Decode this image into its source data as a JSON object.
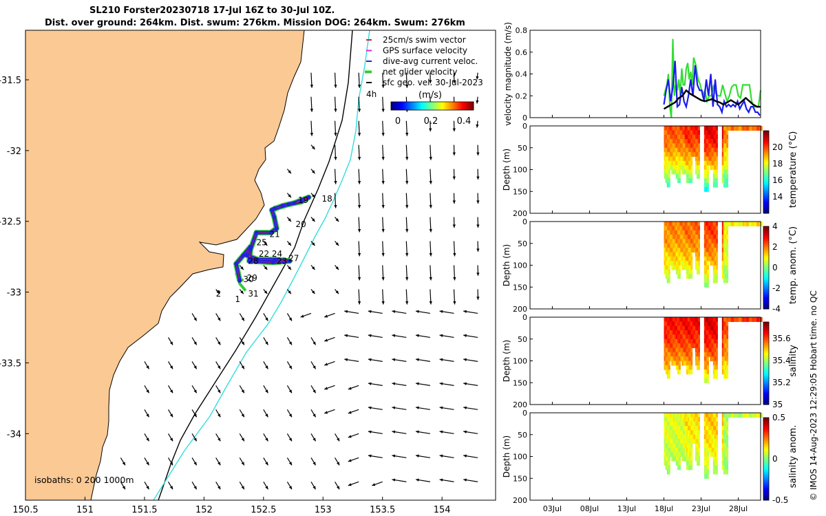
{
  "title": {
    "line1": "SL210 Forster20230718 17-Jul 16Z to 30-Jul 10Z.",
    "line2": "Dist. over ground: 264km. Dist. swum: 276km. Mission DOG: 264km. Swum: 276km"
  },
  "credit": "© IMOS 14-Aug-2023 12:29:05 Hobart time. no QC",
  "colors": {
    "land": "#fac994",
    "isobath200": "#000000",
    "isobath1000": "#33dddd",
    "swim": "#dd2222",
    "gps": "#dd22dd",
    "dive": "#2222dd",
    "net": "#33cc33",
    "geo": "#000000"
  },
  "chart_data": [
    {
      "type": "map",
      "name": "glider track map",
      "xlim": [
        150.5,
        154.45
      ],
      "ylim": [
        -34.47,
        -31.15
      ],
      "xticks": [
        150.5,
        151,
        151.5,
        152,
        152.5,
        153,
        153.5,
        154
      ],
      "xtick_labels": [
        "150.5",
        "151",
        "151.5",
        "152",
        "152.5",
        "153",
        "153.5",
        "154"
      ],
      "yticks": [
        -31.5,
        -32,
        -32.5,
        -33,
        -33.5,
        -34
      ],
      "ytick_labels": [
        "-31.5",
        "-32",
        "-32.5",
        "-33",
        "-33.5",
        "-34"
      ],
      "legend": [
        "25cm/s swim vector",
        "GPS surface velocity",
        "dive-avg current veloc.",
        "net glider velocity",
        "sfc geo. vel. 30-Jul-2023"
      ],
      "colorbar": {
        "label": "(m/s)",
        "ticks": [
          "0",
          "0.2",
          "0.4"
        ],
        "range": [
          0,
          0.5
        ]
      },
      "isobath_label": "isobaths: 0   200  1000m",
      "marker_4h": "4h",
      "day_labels": [
        {
          "text": "18",
          "lon": 152.99,
          "lat": -32.36
        },
        {
          "text": "19",
          "lon": 152.79,
          "lat": -32.37
        },
        {
          "text": "20",
          "lon": 152.77,
          "lat": -32.54
        },
        {
          "text": "21",
          "lon": 152.55,
          "lat": -32.61
        },
        {
          "text": "25",
          "lon": 152.44,
          "lat": -32.67
        },
        {
          "text": "22",
          "lon": 152.46,
          "lat": -32.75
        },
        {
          "text": "24",
          "lon": 152.57,
          "lat": -32.75
        },
        {
          "text": "28",
          "lon": 152.37,
          "lat": -32.8
        },
        {
          "text": "23",
          "lon": 152.61,
          "lat": -32.8
        },
        {
          "text": "27",
          "lon": 152.71,
          "lat": -32.78
        },
        {
          "text": "29",
          "lon": 152.36,
          "lat": -32.92
        },
        {
          "text": "30",
          "lon": 152.33,
          "lat": -32.93
        },
        {
          "text": "2",
          "lon": 152.1,
          "lat": -33.03
        },
        {
          "text": "31",
          "lon": 152.37,
          "lat": -33.03
        },
        {
          "text": "1",
          "lon": 152.26,
          "lat": -33.07
        }
      ],
      "track": [
        [
          152.3,
          -32.92
        ],
        [
          152.27,
          -32.8
        ],
        [
          152.33,
          -32.74
        ],
        [
          152.39,
          -32.68
        ],
        [
          152.36,
          -32.74
        ],
        [
          152.45,
          -32.77
        ],
        [
          152.6,
          -32.77
        ],
        [
          152.72,
          -32.78
        ],
        [
          152.58,
          -32.79
        ],
        [
          152.38,
          -32.78
        ],
        [
          152.39,
          -32.7
        ],
        [
          152.44,
          -32.58
        ],
        [
          152.56,
          -32.58
        ],
        [
          152.61,
          -32.55
        ],
        [
          152.59,
          -32.47
        ],
        [
          152.57,
          -32.42
        ],
        [
          152.66,
          -32.39
        ],
        [
          152.76,
          -32.37
        ],
        [
          152.88,
          -32.33
        ],
        [
          152.82,
          -32.36
        ],
        [
          152.71,
          -32.38
        ],
        [
          152.59,
          -32.41
        ]
      ],
      "track_tail": [
        [
          152.33,
          -32.92
        ],
        [
          152.28,
          -32.89
        ],
        [
          152.3,
          -32.94
        ],
        [
          152.35,
          -32.99
        ]
      ]
    },
    {
      "type": "line",
      "name": "velocity magnitude",
      "ylabel": "velocity magnitude (m/s)",
      "ylim": [
        0,
        0.8
      ],
      "yticks": [
        0,
        0.2,
        0.4,
        0.6,
        0.8
      ],
      "yticklabels": [
        "0",
        "0.2",
        "0.4",
        "0.6",
        "0.8"
      ],
      "xlim": [
        0,
        31
      ],
      "series": [
        {
          "name": "net glider velocity",
          "color": "#33dd33",
          "x": [
            18.0,
            18.2,
            18.4,
            18.6,
            18.8,
            19.0,
            19.2,
            19.4,
            19.6,
            19.8,
            20.0,
            20.2,
            20.4,
            20.6,
            20.8,
            21.0,
            21.2,
            21.4,
            21.6,
            21.8,
            22.0,
            22.3,
            22.6,
            22.9,
            23.2,
            23.5,
            23.8,
            24.1,
            24.4,
            24.7,
            25.0,
            25.3,
            25.6,
            25.9,
            26.2,
            26.5,
            26.8,
            27.1,
            27.4,
            27.7,
            28.0,
            28.3,
            28.6,
            28.9,
            29.2,
            29.5,
            29.8,
            30.1,
            30.4,
            30.7,
            31.0
          ],
          "values": [
            0.2,
            0.25,
            0.3,
            0.4,
            0.1,
            0.0,
            0.72,
            0.2,
            0.3,
            0.25,
            0.35,
            0.2,
            0.45,
            0.3,
            0.3,
            0.45,
            0.5,
            0.35,
            0.42,
            0.3,
            0.55,
            0.48,
            0.35,
            0.3,
            0.2,
            0.25,
            0.15,
            0.2,
            0.2,
            0.3,
            0.22,
            0.2,
            0.2,
            0.3,
            0.22,
            0.15,
            0.2,
            0.28,
            0.3,
            0.3,
            0.2,
            0.18,
            0.3,
            0.3,
            0.3,
            0.3,
            0.15,
            0.1,
            0.1,
            0.1,
            0.25
          ]
        },
        {
          "name": "dive-avg current veloc.",
          "color": "#1a1aee",
          "x": [
            18.0,
            18.3,
            18.6,
            18.9,
            19.2,
            19.5,
            19.8,
            20.1,
            20.4,
            20.7,
            21.0,
            21.3,
            21.6,
            21.9,
            22.2,
            22.5,
            22.8,
            23.1,
            23.4,
            23.7,
            24.0,
            24.3,
            24.6,
            24.9,
            25.2,
            25.5,
            25.8,
            26.1,
            26.4,
            26.7,
            27.0,
            27.3,
            27.6,
            27.9,
            28.2,
            28.5,
            28.8,
            29.1,
            29.4,
            29.7,
            30.0,
            30.3,
            30.6,
            30.9
          ],
          "values": [
            0.12,
            0.25,
            0.35,
            0.15,
            0.28,
            0.52,
            0.1,
            0.12,
            0.28,
            0.15,
            0.1,
            0.2,
            0.35,
            0.2,
            0.48,
            0.3,
            0.25,
            0.25,
            0.15,
            0.35,
            0.2,
            0.4,
            0.1,
            0.35,
            0.12,
            0.1,
            0.05,
            0.15,
            0.1,
            0.12,
            0.1,
            0.12,
            0.1,
            0.15,
            0.08,
            0.12,
            0.15,
            0.08,
            0.05,
            0.1,
            0.1,
            0.05,
            0.05,
            0.02
          ]
        },
        {
          "name": "sfc geo. vel.",
          "color": "#000000",
          "x": [
            18.0,
            18.5,
            19.0,
            19.5,
            20.0,
            20.5,
            21.0,
            21.5,
            22.0,
            22.5,
            23.0,
            23.5,
            24.0,
            24.5,
            25.0,
            25.5,
            26.0,
            26.5,
            27.0,
            27.5,
            28.0,
            28.5,
            29.0,
            29.5,
            30.0,
            30.5,
            31.0
          ],
          "values": [
            0.08,
            0.1,
            0.12,
            0.14,
            0.18,
            0.2,
            0.25,
            0.22,
            0.2,
            0.18,
            0.16,
            0.15,
            0.16,
            0.17,
            0.15,
            0.14,
            0.12,
            0.14,
            0.16,
            0.14,
            0.12,
            0.15,
            0.18,
            0.15,
            0.12,
            0.1,
            0.1
          ]
        }
      ]
    },
    {
      "type": "heatmap",
      "name": "temperature",
      "ylabel": "Depth (m)",
      "clabel": "temperature (°C)",
      "ylim": [
        0,
        200
      ],
      "yticks": [
        0,
        50,
        100,
        150,
        200
      ],
      "yticklabels": [
        "0",
        "50",
        "100",
        "150",
        "200"
      ],
      "clim": [
        12,
        22
      ],
      "cticks": [
        14,
        16,
        18,
        20
      ],
      "cticklabels": [
        "14",
        "16",
        "18",
        "20"
      ],
      "base": [
        20,
        20.5,
        21,
        19.5,
        19.7
      ],
      "deep": 15.5
    },
    {
      "type": "heatmap",
      "name": "temp. anom.",
      "ylabel": "Depth (m)",
      "clabel": "temp. anom. (°C)",
      "ylim": [
        0,
        200
      ],
      "yticks": [
        0,
        50,
        100,
        150,
        200
      ],
      "yticklabels": [
        "0",
        "50",
        "100",
        "150",
        "200"
      ],
      "clim": [
        -4,
        4
      ],
      "cticks": [
        -4,
        -2,
        0,
        2,
        4
      ],
      "cticklabels": [
        "-4",
        "-2",
        "0",
        "2",
        "4"
      ],
      "base": [
        2.0,
        2.2,
        2.6,
        1.0,
        1.2
      ],
      "deep": 0.0
    },
    {
      "type": "heatmap",
      "name": "salinity",
      "ylabel": "Depth (m)",
      "clabel": "salinity",
      "ylim": [
        0,
        200
      ],
      "yticks": [
        0,
        50,
        100,
        150,
        200
      ],
      "yticklabels": [
        "0",
        "50",
        "100",
        "150",
        "200"
      ],
      "clim": [
        35,
        35.75
      ],
      "cticks": [
        35,
        35.2,
        35.4,
        35.6
      ],
      "cticklabels": [
        "35",
        "35.2",
        "35.4",
        "35.6"
      ],
      "base": [
        35.65,
        35.66,
        35.68,
        35.6,
        35.62
      ],
      "deep": 35.42
    },
    {
      "type": "heatmap",
      "name": "salinity anom.",
      "ylabel": "Depth (m)",
      "clabel": "salinity anom.",
      "ylim": [
        0,
        200
      ],
      "yticks": [
        0,
        50,
        100,
        150,
        200
      ],
      "yticklabels": [
        "0",
        "50",
        "100",
        "150",
        "200"
      ],
      "clim": [
        -0.5,
        0.5
      ],
      "cticks": [
        -0.5,
        0,
        0.5
      ],
      "cticklabels": [
        "-0.5",
        "0",
        "0.5"
      ],
      "base": [
        0.1,
        0.15,
        0.18,
        0.05,
        0.08
      ],
      "deep": 0.02
    }
  ],
  "time_axis": {
    "xlim": [
      0,
      31
    ],
    "ticks": [
      3,
      8,
      13,
      18,
      23,
      28
    ],
    "labels": [
      "03Jul",
      "08Jul",
      "13Jul",
      "18Jul",
      "23Jul",
      "28Jul"
    ]
  },
  "profile_mask": [
    [
      18.0,
      18.6,
      120,
      140
    ],
    [
      18.6,
      19.5,
      95,
      108
    ],
    [
      19.5,
      20.1,
      118,
      125
    ],
    [
      20.1,
      20.9,
      95,
      110
    ],
    [
      20.9,
      21.6,
      130,
      130
    ],
    [
      21.6,
      22.1,
      55,
      70
    ],
    [
      22.1,
      22.6,
      108,
      115
    ],
    [
      22.6,
      23.2,
      0,
      0
    ],
    [
      23.2,
      23.8,
      145,
      150
    ],
    [
      23.8,
      24.4,
      85,
      95
    ],
    [
      24.4,
      25.1,
      130,
      140
    ],
    [
      25.1,
      25.7,
      0,
      0
    ],
    [
      25.7,
      26.4,
      128,
      140
    ],
    [
      26.4,
      31.0,
      2,
      2
    ]
  ],
  "surface_run": [
    26.4,
    31.0
  ]
}
